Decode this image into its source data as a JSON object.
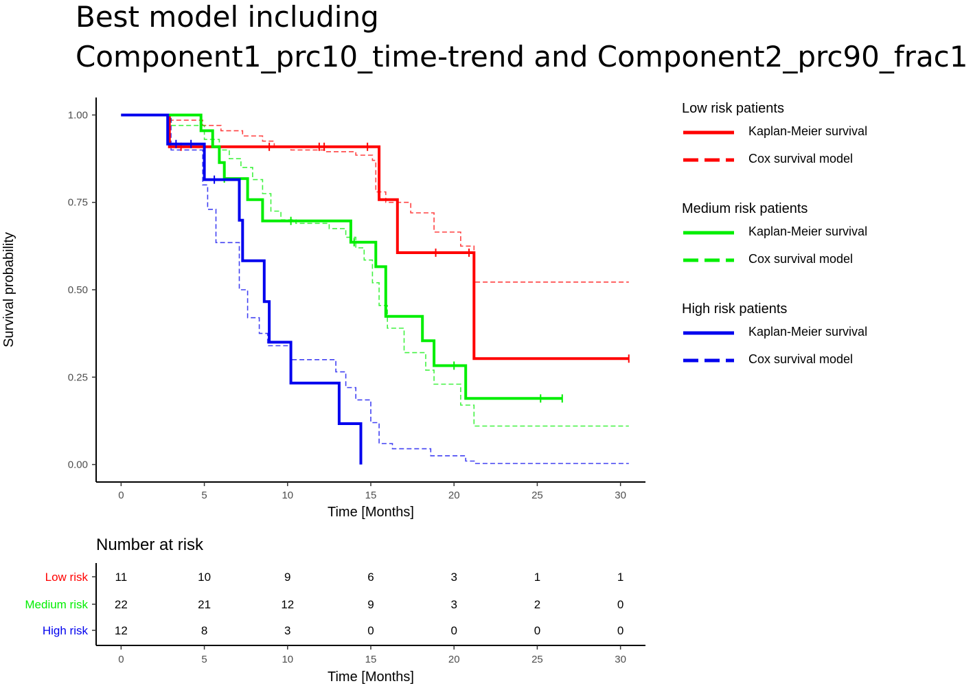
{
  "title": {
    "line1": "Best model including",
    "line2": "Component1_prc10_time-trend and Component2_prc90_frac1"
  },
  "colors": {
    "low": "#ff0000",
    "medium": "#00ee00",
    "high": "#0000ee",
    "axis": "#000000"
  },
  "chart_data": {
    "type": "line",
    "subtype": "kaplan-meier step",
    "xlabel": "Time [Months]",
    "ylabel": "Survival probability",
    "xlim": [
      -1.5,
      31.5
    ],
    "ylim": [
      -0.05,
      1.05
    ],
    "x_ticks": [
      0,
      5,
      10,
      15,
      20,
      25,
      30
    ],
    "x_tick_labels": [
      "0",
      "5",
      "10",
      "15",
      "20",
      "25",
      "30"
    ],
    "y_ticks": [
      0,
      0.25,
      0.5,
      0.75,
      1
    ],
    "y_tick_labels": [
      "0.00",
      "0.25",
      "0.50",
      "0.75",
      "1.00"
    ],
    "legend": [
      {
        "group": "low",
        "title": "Low risk patients",
        "km_label": "Kaplan-Meier survival",
        "cox_label": "Cox survival model"
      },
      {
        "group": "medium",
        "title": "Medium risk patients",
        "km_label": "Kaplan-Meier survival",
        "cox_label": "Cox survival model"
      },
      {
        "group": "high",
        "title": "High risk patients",
        "km_label": "Kaplan-Meier survival",
        "cox_label": "Cox survival model"
      }
    ],
    "series": [
      {
        "name": "Low risk Kaplan-Meier survival",
        "group": "low",
        "style": "solid",
        "points": [
          [
            0,
            1
          ],
          [
            2.9,
            1
          ],
          [
            2.9,
            0.909
          ],
          [
            15.5,
            0.909
          ],
          [
            15.5,
            0.758
          ],
          [
            16.6,
            0.758
          ],
          [
            16.6,
            0.606
          ],
          [
            21.2,
            0.606
          ],
          [
            21.2,
            0.303
          ],
          [
            30.5,
            0.303
          ]
        ],
        "censors": [
          [
            3.6,
            0.909
          ],
          [
            8.9,
            0.909
          ],
          [
            11.9,
            0.909
          ],
          [
            12.2,
            0.909
          ],
          [
            14.8,
            0.909
          ],
          [
            18.9,
            0.606
          ],
          [
            20.9,
            0.606
          ],
          [
            30.5,
            0.303
          ]
        ]
      },
      {
        "name": "Low risk Cox survival model",
        "group": "low",
        "style": "dashed",
        "points": [
          [
            0,
            1
          ],
          [
            2.9,
            1
          ],
          [
            2.9,
            0.985
          ],
          [
            4.9,
            0.985
          ],
          [
            4.9,
            0.97
          ],
          [
            6.0,
            0.97
          ],
          [
            6.0,
            0.955
          ],
          [
            7.3,
            0.955
          ],
          [
            7.3,
            0.94
          ],
          [
            8.5,
            0.94
          ],
          [
            8.5,
            0.925
          ],
          [
            9.2,
            0.925
          ],
          [
            9.2,
            0.91
          ],
          [
            10.2,
            0.91
          ],
          [
            10.2,
            0.9
          ],
          [
            12.3,
            0.9
          ],
          [
            12.3,
            0.895
          ],
          [
            14.1,
            0.895
          ],
          [
            14.1,
            0.885
          ],
          [
            15.1,
            0.885
          ],
          [
            15.1,
            0.87
          ],
          [
            15.3,
            0.87
          ],
          [
            15.3,
            0.78
          ],
          [
            15.9,
            0.78
          ],
          [
            15.9,
            0.75
          ],
          [
            17.4,
            0.75
          ],
          [
            17.4,
            0.72
          ],
          [
            18.8,
            0.72
          ],
          [
            18.8,
            0.665
          ],
          [
            20.4,
            0.665
          ],
          [
            20.4,
            0.625
          ],
          [
            21.2,
            0.625
          ],
          [
            21.2,
            0.522
          ],
          [
            30.5,
            0.522
          ]
        ]
      },
      {
        "name": "Medium risk Kaplan-Meier survival",
        "group": "medium",
        "style": "solid",
        "points": [
          [
            0,
            1
          ],
          [
            4.8,
            1
          ],
          [
            4.8,
            0.955
          ],
          [
            5.5,
            0.955
          ],
          [
            5.5,
            0.909
          ],
          [
            5.9,
            0.909
          ],
          [
            5.9,
            0.864
          ],
          [
            6.2,
            0.864
          ],
          [
            6.2,
            0.818
          ],
          [
            7.6,
            0.818
          ],
          [
            7.6,
            0.758
          ],
          [
            8.5,
            0.758
          ],
          [
            8.5,
            0.697
          ],
          [
            13.8,
            0.697
          ],
          [
            13.8,
            0.636
          ],
          [
            15.3,
            0.636
          ],
          [
            15.3,
            0.566
          ],
          [
            15.9,
            0.566
          ],
          [
            15.9,
            0.424
          ],
          [
            18.1,
            0.424
          ],
          [
            18.1,
            0.354
          ],
          [
            18.8,
            0.354
          ],
          [
            18.8,
            0.283
          ],
          [
            20.7,
            0.283
          ],
          [
            20.7,
            0.189
          ],
          [
            26.5,
            0.189
          ]
        ],
        "censors": [
          [
            6.2,
            0.818
          ],
          [
            10.2,
            0.697
          ],
          [
            14.0,
            0.636
          ],
          [
            20.0,
            0.283
          ],
          [
            25.2,
            0.189
          ],
          [
            26.5,
            0.189
          ]
        ]
      },
      {
        "name": "Medium risk Cox survival model",
        "group": "medium",
        "style": "dashed",
        "points": [
          [
            0,
            1
          ],
          [
            3.0,
            1
          ],
          [
            3.0,
            0.97
          ],
          [
            5.0,
            0.97
          ],
          [
            5.0,
            0.93
          ],
          [
            5.9,
            0.93
          ],
          [
            5.9,
            0.9
          ],
          [
            6.5,
            0.9
          ],
          [
            6.5,
            0.875
          ],
          [
            7.2,
            0.875
          ],
          [
            7.2,
            0.85
          ],
          [
            7.9,
            0.85
          ],
          [
            7.9,
            0.815
          ],
          [
            8.5,
            0.815
          ],
          [
            8.5,
            0.775
          ],
          [
            9.0,
            0.775
          ],
          [
            9.0,
            0.725
          ],
          [
            9.6,
            0.725
          ],
          [
            9.6,
            0.7
          ],
          [
            10.5,
            0.7
          ],
          [
            10.5,
            0.69
          ],
          [
            12.5,
            0.69
          ],
          [
            12.5,
            0.675
          ],
          [
            13.5,
            0.675
          ],
          [
            13.5,
            0.65
          ],
          [
            14.1,
            0.65
          ],
          [
            14.1,
            0.62
          ],
          [
            14.6,
            0.62
          ],
          [
            14.6,
            0.585
          ],
          [
            15.1,
            0.585
          ],
          [
            15.1,
            0.52
          ],
          [
            15.5,
            0.52
          ],
          [
            15.5,
            0.455
          ],
          [
            16.0,
            0.455
          ],
          [
            16.0,
            0.39
          ],
          [
            17.0,
            0.39
          ],
          [
            17.0,
            0.32
          ],
          [
            18.3,
            0.32
          ],
          [
            18.3,
            0.27
          ],
          [
            18.8,
            0.27
          ],
          [
            18.8,
            0.23
          ],
          [
            20.4,
            0.23
          ],
          [
            20.4,
            0.17
          ],
          [
            21.2,
            0.17
          ],
          [
            21.2,
            0.11
          ],
          [
            30.5,
            0.11
          ]
        ]
      },
      {
        "name": "High risk Kaplan-Meier survival",
        "group": "high",
        "style": "solid",
        "points": [
          [
            0,
            1
          ],
          [
            2.8,
            1
          ],
          [
            2.8,
            0.917
          ],
          [
            5.0,
            0.917
          ],
          [
            5.0,
            0.815
          ],
          [
            7.1,
            0.815
          ],
          [
            7.1,
            0.699
          ],
          [
            7.3,
            0.699
          ],
          [
            7.3,
            0.583
          ],
          [
            8.6,
            0.583
          ],
          [
            8.6,
            0.466
          ],
          [
            8.9,
            0.466
          ],
          [
            8.9,
            0.35
          ],
          [
            10.2,
            0.35
          ],
          [
            10.2,
            0.233
          ],
          [
            13.1,
            0.233
          ],
          [
            13.1,
            0.117
          ],
          [
            14.4,
            0.117
          ],
          [
            14.4,
            0
          ]
        ],
        "censors": [
          [
            3.3,
            0.917
          ],
          [
            4.2,
            0.917
          ],
          [
            5.6,
            0.815
          ]
        ]
      },
      {
        "name": "High risk Cox survival model",
        "group": "high",
        "style": "dashed",
        "points": [
          [
            0,
            1
          ],
          [
            3.0,
            1
          ],
          [
            3.0,
            0.9
          ],
          [
            4.9,
            0.9
          ],
          [
            4.9,
            0.8
          ],
          [
            5.2,
            0.8
          ],
          [
            5.2,
            0.73
          ],
          [
            5.7,
            0.73
          ],
          [
            5.7,
            0.635
          ],
          [
            7.1,
            0.635
          ],
          [
            7.1,
            0.5
          ],
          [
            7.6,
            0.5
          ],
          [
            7.6,
            0.42
          ],
          [
            8.3,
            0.42
          ],
          [
            8.3,
            0.375
          ],
          [
            8.8,
            0.375
          ],
          [
            8.8,
            0.34
          ],
          [
            10.2,
            0.34
          ],
          [
            10.2,
            0.3
          ],
          [
            12.9,
            0.3
          ],
          [
            12.9,
            0.265
          ],
          [
            13.5,
            0.265
          ],
          [
            13.5,
            0.22
          ],
          [
            14.1,
            0.22
          ],
          [
            14.1,
            0.185
          ],
          [
            15.0,
            0.185
          ],
          [
            15.0,
            0.12
          ],
          [
            15.5,
            0.12
          ],
          [
            15.5,
            0.06
          ],
          [
            16.3,
            0.06
          ],
          [
            16.3,
            0.045
          ],
          [
            18.6,
            0.045
          ],
          [
            18.6,
            0.025
          ],
          [
            20.7,
            0.025
          ],
          [
            20.7,
            0.01
          ],
          [
            21.3,
            0.01
          ],
          [
            21.3,
            0.003
          ],
          [
            30.5,
            0.003
          ]
        ]
      }
    ],
    "risk_table": {
      "title": "Number at risk",
      "xlabel": "Time [Months]",
      "times": [
        0,
        5,
        10,
        15,
        20,
        25,
        30
      ],
      "time_labels": [
        "0",
        "5",
        "10",
        "15",
        "20",
        "25",
        "30"
      ],
      "rows": [
        {
          "group": "low",
          "label": "Low risk",
          "counts": [
            "11",
            "10",
            "9",
            "6",
            "3",
            "1",
            "1"
          ]
        },
        {
          "group": "medium",
          "label": "Medium risk",
          "counts": [
            "22",
            "21",
            "12",
            "9",
            "3",
            "2",
            "0"
          ]
        },
        {
          "group": "high",
          "label": "High risk",
          "counts": [
            "12",
            "8",
            "3",
            "0",
            "0",
            "0",
            "0"
          ]
        }
      ]
    }
  }
}
